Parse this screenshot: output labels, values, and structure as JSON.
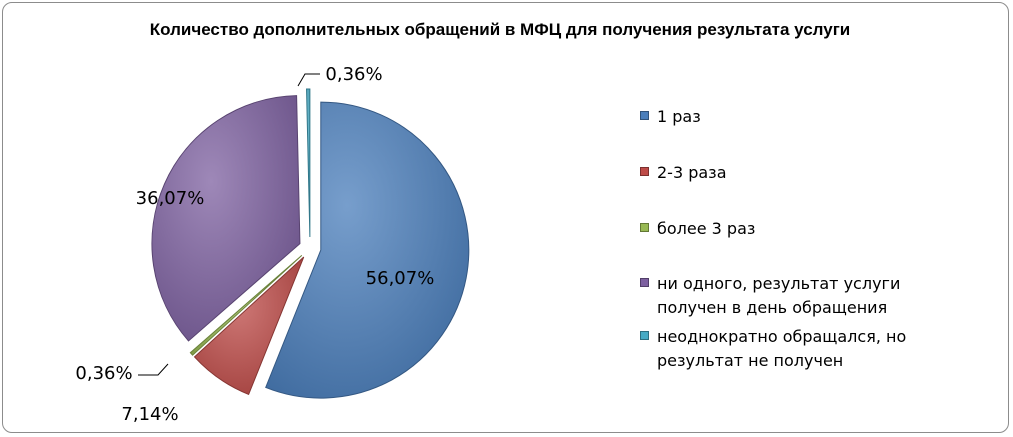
{
  "chart_data": {
    "type": "pie",
    "title": "Количество дополнительных обращений в МФЦ для получения результата услуги",
    "series": [
      {
        "name": "1 раз",
        "value": 56.07,
        "label": "56,07%",
        "color": "#4a7ebb"
      },
      {
        "name": "2-3 раза",
        "value": 7.14,
        "label": "7,14%",
        "color": "#be4b48"
      },
      {
        "name": "более 3 раз",
        "value": 0.36,
        "label": "0,36%",
        "color": "#98b954"
      },
      {
        "name": "ни одного, результат услуги получен в день обращения",
        "value": 36.07,
        "label": "36,07%",
        "color": "#7d60a0"
      },
      {
        "name": "неоднократно обращался, но результат не получен",
        "value": 0.36,
        "label": "0,36%",
        "color": "#46aac4"
      }
    ],
    "legend_position": "right"
  }
}
